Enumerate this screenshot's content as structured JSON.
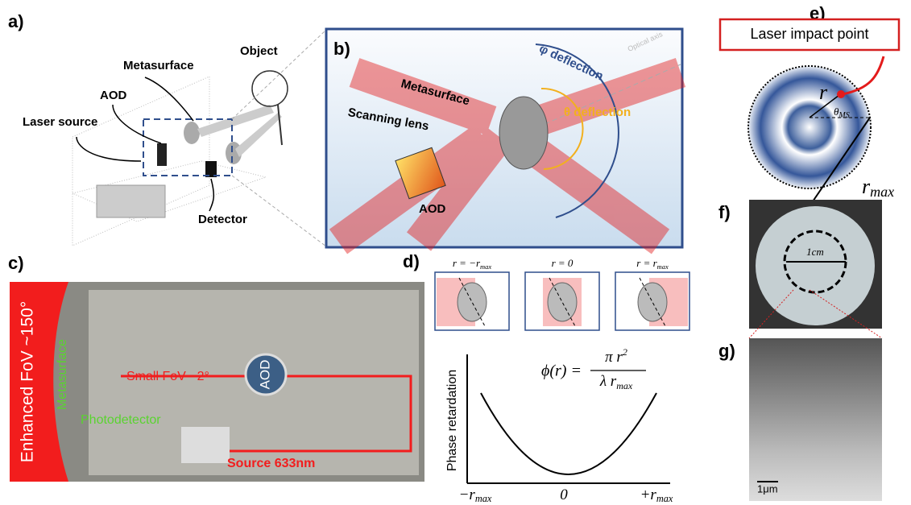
{
  "panels": {
    "a": {
      "label": "a)",
      "object": "Object",
      "metasurface": "Metasurface",
      "aod": "AOD",
      "laser_source": "Laser source",
      "detector": "Detector"
    },
    "b": {
      "label": "b)",
      "metasurface": "Metasurface",
      "scanning_lens": "Scanning lens",
      "aod": "AOD",
      "phi_deflection": "φ deflection",
      "theta_deflection": "θ deflection",
      "optical_axis": "Optical axis"
    },
    "c": {
      "label": "c)",
      "enhanced_fov": "Enhanced FoV ~150°",
      "metasurface": "Metasurface",
      "small_fov": "Small FoV ~2°",
      "aod": "AOD",
      "photodetector": "Photodetector",
      "source": "Source 633nm"
    },
    "d": {
      "label": "d)",
      "insets": [
        {
          "base": "r = −r",
          "sub": "max"
        },
        {
          "base": "r = 0",
          "sub": ""
        },
        {
          "base": "r = r",
          "sub": "max"
        }
      ],
      "formula": {
        "lhs": "ϕ(r) =",
        "numerator": "π r",
        "exponent": "2",
        "denominator": "λ r",
        "denominator_sub": "max"
      },
      "y_axis_label": "Phase retardation",
      "x_labels": [
        {
          "base": "−r",
          "sub": "max"
        },
        {
          "base": "0",
          "sub": ""
        },
        {
          "base": "+r",
          "sub": "max"
        }
      ]
    },
    "e": {
      "label": "e)",
      "box": "Laser impact point",
      "r": "r",
      "theta": "θ",
      "theta_sub": "MS",
      "rmax": "r",
      "rmax_sub": "max"
    },
    "f": {
      "label": "f)",
      "scale": "1cm"
    },
    "g": {
      "label": "g)",
      "scale": "1μm"
    }
  }
}
